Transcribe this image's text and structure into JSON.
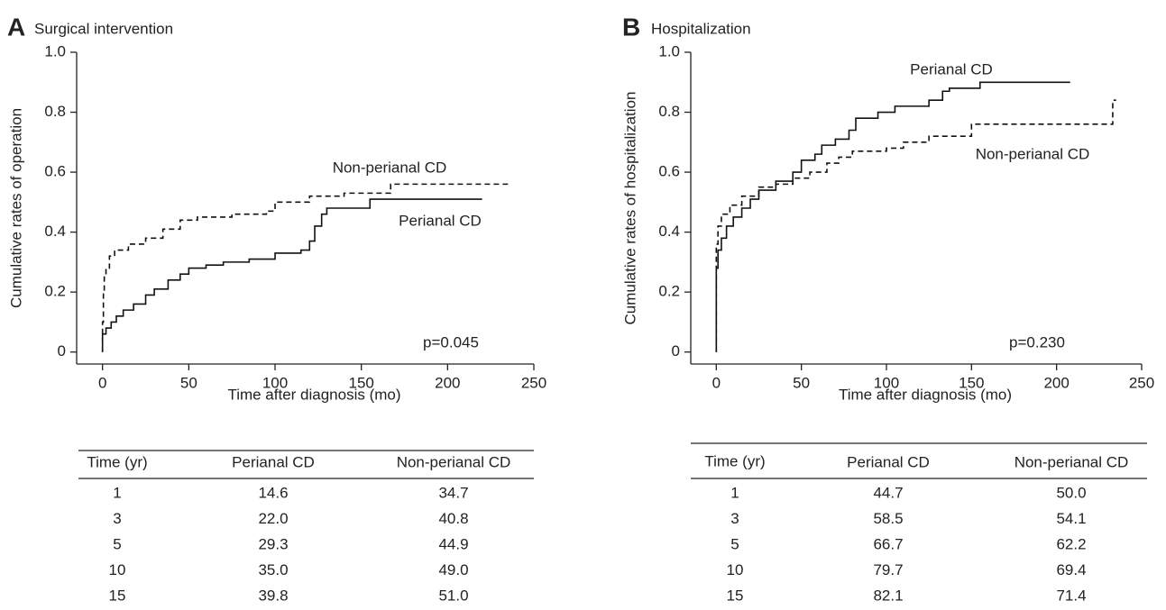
{
  "chart_data": [
    {
      "type": "line",
      "step": true,
      "panel": "A",
      "title": "Surgical intervention",
      "xlabel": "Time after diagnosis (mo)",
      "ylabel": "Cumulative rates of operation",
      "annotation": "p=0.045",
      "xlim": [
        -15,
        250
      ],
      "ylim": [
        -0.04,
        1.0
      ],
      "xticks": [
        0,
        50,
        100,
        150,
        200,
        250
      ],
      "yticks": [
        0,
        0.2,
        0.4,
        0.6,
        0.8,
        {
          "value": 1,
          "label": "1.0"
        }
      ],
      "series": [
        {
          "name": "Perianal CD",
          "color": "#111111",
          "dash": false,
          "x": [
            0,
            0,
            2,
            5,
            8,
            12,
            18,
            25,
            30,
            38,
            45,
            50,
            60,
            70,
            85,
            100,
            115,
            120,
            123,
            127,
            130,
            155,
            220
          ],
          "values": [
            0,
            0.06,
            0.08,
            0.1,
            0.12,
            0.14,
            0.16,
            0.19,
            0.21,
            0.24,
            0.26,
            0.28,
            0.29,
            0.3,
            0.31,
            0.33,
            0.34,
            0.37,
            0.42,
            0.46,
            0.48,
            0.51,
            0.51
          ]
        },
        {
          "name": "Non-perianal CD",
          "color": "#111111",
          "dash": true,
          "x": [
            0,
            0,
            0.5,
            1,
            2,
            4,
            7,
            15,
            25,
            35,
            45,
            55,
            75,
            95,
            100,
            120,
            140,
            167,
            235
          ],
          "values": [
            0,
            0.1,
            0.2,
            0.25,
            0.28,
            0.32,
            0.34,
            0.36,
            0.38,
            0.41,
            0.44,
            0.45,
            0.46,
            0.47,
            0.5,
            0.52,
            0.53,
            0.56,
            0.56
          ]
        }
      ],
      "table": {
        "columns": [
          "Time (yr)",
          "Perianal CD",
          "Non-perianal CD"
        ],
        "rows": [
          [
            "1",
            "14.6",
            "34.7"
          ],
          [
            "3",
            "22.0",
            "40.8"
          ],
          [
            "5",
            "29.3",
            "44.9"
          ],
          [
            "10",
            "35.0",
            "49.0"
          ],
          [
            "15",
            "39.8",
            "51.0"
          ]
        ]
      }
    },
    {
      "type": "line",
      "step": true,
      "panel": "B",
      "title": "Hospitalization",
      "xlabel": "Time after diagnosis (mo)",
      "ylabel": "Cumulative rates of hospitalization",
      "annotation": "p=0.230",
      "xlim": [
        -15,
        250
      ],
      "ylim": [
        -0.04,
        1.0
      ],
      "xticks": [
        0,
        50,
        100,
        150,
        200,
        250
      ],
      "yticks": [
        0,
        0.2,
        0.4,
        0.6,
        0.8,
        {
          "value": 1,
          "label": "1.0"
        }
      ],
      "series": [
        {
          "name": "Perianal CD",
          "color": "#111111",
          "dash": false,
          "x": [
            0,
            0,
            1,
            3,
            6,
            10,
            15,
            20,
            25,
            35,
            45,
            50,
            58,
            62,
            70,
            78,
            82,
            95,
            105,
            125,
            133,
            137,
            155,
            208
          ],
          "values": [
            0,
            0.28,
            0.34,
            0.38,
            0.42,
            0.45,
            0.48,
            0.51,
            0.54,
            0.57,
            0.6,
            0.64,
            0.66,
            0.69,
            0.71,
            0.74,
            0.78,
            0.8,
            0.82,
            0.84,
            0.87,
            0.88,
            0.9,
            0.9
          ]
        },
        {
          "name": "Non-perianal CD",
          "color": "#111111",
          "dash": true,
          "x": [
            0,
            0,
            1,
            3,
            8,
            15,
            25,
            35,
            45,
            55,
            65,
            72,
            80,
            100,
            110,
            125,
            150,
            233,
            235
          ],
          "values": [
            0,
            0.36,
            0.42,
            0.46,
            0.49,
            0.52,
            0.55,
            0.56,
            0.58,
            0.6,
            0.63,
            0.65,
            0.67,
            0.68,
            0.7,
            0.72,
            0.76,
            0.84,
            0.84
          ]
        }
      ],
      "table": {
        "columns": [
          "Time (yr)",
          "Perianal CD",
          "Non-perianal CD"
        ],
        "rows": [
          [
            "1",
            "44.7",
            "50.0"
          ],
          [
            "3",
            "58.5",
            "54.1"
          ],
          [
            "5",
            "66.7",
            "62.2"
          ],
          [
            "10",
            "79.7",
            "69.4"
          ],
          [
            "15",
            "82.1",
            "71.4"
          ]
        ]
      }
    }
  ]
}
